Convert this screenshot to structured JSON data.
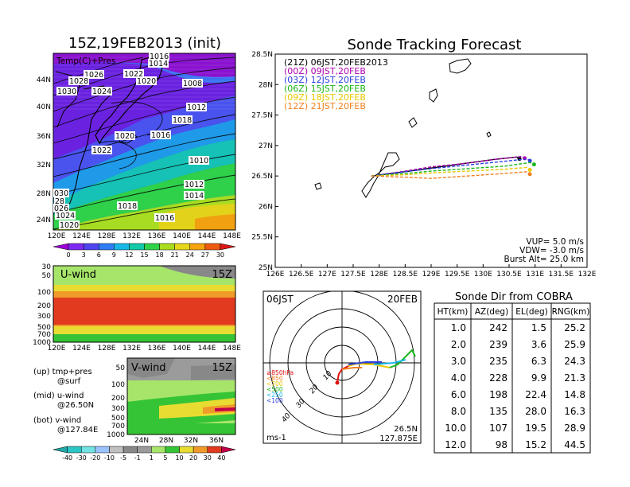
{
  "left": {
    "title": "15Z,19FEB2013 (init)",
    "map_label": "Temp(C)+Pres",
    "lat_ticks": [
      "44N",
      "40N",
      "36N",
      "32N",
      "28N",
      "24N"
    ],
    "lon_ticks": [
      "120E",
      "124E",
      "128E",
      "132E",
      "136E",
      "140E",
      "144E",
      "148E"
    ],
    "pressure_labels": [
      "1016",
      "1014",
      "1026",
      "1028",
      "1022",
      "1020",
      "1030",
      "1024",
      "1008",
      "1012",
      "1018",
      "1020",
      "1016",
      "1022",
      "1010",
      "1012",
      "1014",
      "1018",
      "1016",
      "030",
      "28",
      "026",
      "1024",
      "1020"
    ],
    "temp_colorbar": [
      "0",
      "3",
      "6",
      "9",
      "12",
      "15",
      "18",
      "21",
      "24",
      "27",
      "30"
    ],
    "temp_colors": [
      "#9b00d6",
      "#7f2af2",
      "#4e44f0",
      "#2e7df5",
      "#18b7e8",
      "#12c9a8",
      "#2fd34a",
      "#a9dc1d",
      "#e7d61a",
      "#f7a20f",
      "#ef5a11",
      "#dd1616"
    ],
    "uwind": {
      "label": "U-wind",
      "time": "15Z",
      "p_ticks": [
        "30",
        "50",
        "100",
        "200",
        "300",
        "500",
        "700",
        "1000"
      ],
      "lon_ticks": [
        "120E",
        "124E",
        "128E",
        "132E",
        "136E",
        "140E",
        "144E",
        "148E"
      ]
    },
    "vwind": {
      "label": "V-wind",
      "time": "15Z",
      "p_ticks": [
        "50",
        "100",
        "200",
        "300",
        "500",
        "700",
        "1000"
      ],
      "lat_ticks": [
        "24N",
        "28N",
        "32N",
        "36N"
      ]
    },
    "wind_colorbar": [
      "-40",
      "-30",
      "-20",
      "-10",
      "-5",
      "-1",
      "1",
      "5",
      "10",
      "20",
      "30",
      "40"
    ],
    "wind_colors": [
      "#1fa8a8",
      "#2cc6c6",
      "#73e2e2",
      "#9ac4ff",
      "#c0c0c0",
      "#888888",
      "#9b9b9b",
      "#a6e56a",
      "#35c435",
      "#e8dc32",
      "#f09a2a",
      "#e23a1f",
      "#c2004a"
    ],
    "notes": [
      {
        "a": "(up) tmp+pres",
        "b": "@surf"
      },
      {
        "a": "(mid) u-wind",
        "b": "@26.50N"
      },
      {
        "a": "(bot) v-wind",
        "b": "@127.84E"
      }
    ]
  },
  "track": {
    "title": "Sonde Tracking Forecast",
    "lat_ticks": [
      "28.5N",
      "28N",
      "27.5N",
      "27N",
      "26.5N",
      "26N",
      "25.5N",
      "25N"
    ],
    "lon_ticks": [
      "126E",
      "126.5E",
      "127E",
      "127.5E",
      "128E",
      "128.5E",
      "129E",
      "129.5E",
      "130E",
      "130.5E",
      "131E",
      "131.5E",
      "132E"
    ],
    "legend": [
      {
        "text": "(21Z) 06JST,20FEB2013",
        "color": "#000000"
      },
      {
        "text": "(00Z) 09JST,20FEB",
        "color": "#b000b0"
      },
      {
        "text": "(03Z) 12JST,20FEB",
        "color": "#2d3fe0"
      },
      {
        "text": "(06Z) 15JST,20FEB",
        "color": "#1ab61a"
      },
      {
        "text": "(09Z) 18JST,20FEB",
        "color": "#e6c800"
      },
      {
        "text": "(12Z) 21JST,20FEB",
        "color": "#f08020"
      }
    ],
    "params": [
      "VUP= 5.0 m/s",
      "VDW= -3.0 m/s",
      "Burst Alt= 25.0 km"
    ]
  },
  "chart_data": [
    {
      "type": "line",
      "title": "Sonde Tracking Forecast",
      "xlim": [
        126,
        132
      ],
      "ylim": [
        25,
        28.5
      ],
      "series": [
        {
          "name": "(21Z) 06JST,20FEB2013",
          "x": [
            127.85,
            128.5,
            129.0,
            129.6,
            130.2,
            130.65,
            130.7
          ],
          "y": [
            26.5,
            26.57,
            26.63,
            26.7,
            26.77,
            26.81,
            26.78
          ]
        },
        {
          "name": "(00Z) 09JST,20FEB",
          "x": [
            127.85,
            128.5,
            129.0,
            129.7,
            130.3,
            130.75,
            130.8
          ],
          "y": [
            26.5,
            26.58,
            26.65,
            26.71,
            26.78,
            26.82,
            26.79
          ]
        },
        {
          "name": "(03Z) 12JST,20FEB",
          "x": [
            127.85,
            128.5,
            129.0,
            129.7,
            130.4,
            130.85,
            130.9
          ],
          "y": [
            26.5,
            26.57,
            26.62,
            26.68,
            26.74,
            26.78,
            26.75
          ]
        },
        {
          "name": "(06Z) 15JST,20FEB",
          "x": [
            127.85,
            128.5,
            129.0,
            129.7,
            130.4,
            130.9,
            130.98
          ],
          "y": [
            26.5,
            26.54,
            26.58,
            26.62,
            26.66,
            26.72,
            26.69
          ]
        },
        {
          "name": "(09Z) 18JST,20FEB",
          "x": [
            127.85,
            128.5,
            129.0,
            129.7,
            130.4,
            130.85,
            130.9
          ],
          "y": [
            26.5,
            26.52,
            26.55,
            26.58,
            26.61,
            26.64,
            26.6
          ]
        },
        {
          "name": "(12Z) 21JST,20FEB",
          "x": [
            127.85,
            128.5,
            129.0,
            129.7,
            130.4,
            130.85,
            130.9
          ],
          "y": [
            26.5,
            26.48,
            26.46,
            26.5,
            26.54,
            26.57,
            26.53
          ]
        }
      ]
    },
    {
      "type": "table",
      "title": "Sonde Dir from COBRA",
      "columns": [
        "HT(km)",
        "AZ(deg)",
        "EL(deg)",
        "RNG(km)"
      ],
      "rows": [
        [
          "1.0",
          "242",
          "1.5",
          "25.2"
        ],
        [
          "2.0",
          "239",
          "3.6",
          "25.9"
        ],
        [
          "3.0",
          "235",
          "6.3",
          "24.3"
        ],
        [
          "4.0",
          "228",
          "9.9",
          "21.3"
        ],
        [
          "6.0",
          "198",
          "22.4",
          "14.8"
        ],
        [
          "8.0",
          "135",
          "28.0",
          "16.3"
        ],
        [
          "10.0",
          "107",
          "19.5",
          "28.9"
        ],
        [
          "12.0",
          "98",
          "15.2",
          "44.5"
        ]
      ]
    }
  ],
  "polar": {
    "time_left": "06JST",
    "time_right": "20FEB",
    "ring_labels": [
      "10",
      "20",
      "30",
      "40"
    ],
    "height_legend": [
      {
        "text": "≥850hPa",
        "color": "#e01010"
      },
      {
        "text": "<850",
        "color": "#f08020"
      },
      {
        "text": "<700",
        "color": "#e6c800"
      },
      {
        "text": "<500",
        "color": "#1ab61a"
      },
      {
        "text": "<250",
        "color": "#18b7e8"
      },
      {
        "text": "<100",
        "color": "#2d3fe0"
      }
    ],
    "unit": "ms-1",
    "location_lat": "26.5N",
    "location_lon": "127.875E"
  }
}
